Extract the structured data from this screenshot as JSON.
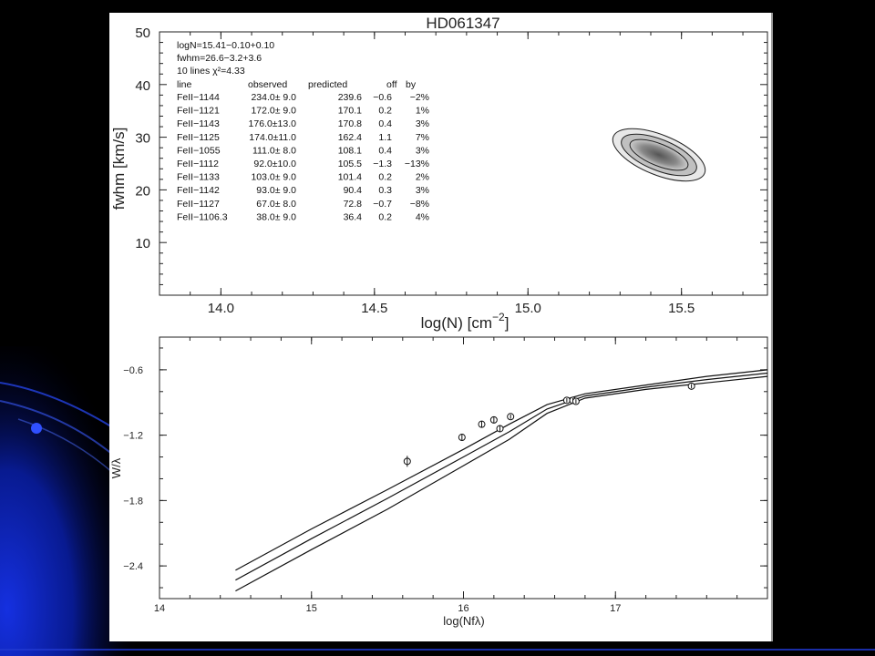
{
  "chart_data": [
    {
      "type": "contour",
      "title": "HD061347",
      "xlabel_main": "log(N)",
      "xlabel_unit": "[cm",
      "xlabel_unit_exp": "−2",
      "xlabel_unit_close": "]",
      "ylabel": "fwhm [km/s]",
      "xlim": [
        13.8,
        15.78
      ],
      "ylim": [
        0,
        50
      ],
      "xticks": [
        14.0,
        14.5,
        15.0,
        15.5
      ],
      "xtick_labels": [
        "14.0",
        "14.5",
        "15.0",
        "15.5"
      ],
      "yticks": [
        10,
        20,
        30,
        40,
        50
      ],
      "ytick_labels": [
        "10",
        "20",
        "30",
        "40",
        "50"
      ],
      "best_fit": {
        "logN": 15.41,
        "fwhm": 26.6
      },
      "info_lines": [
        "logN=15.41−0.10+0.10",
        "fwhm=26.6−3.2+3.6",
        "10 lines χ²=4.33"
      ],
      "table_header": [
        "line",
        "observed",
        "predicted",
        "off",
        "by"
      ],
      "table_rows": [
        [
          "FeII−1144",
          "234.0±  9.0",
          "239.6",
          "−0.6",
          "−2%"
        ],
        [
          "FeII−1121",
          "172.0±  9.0",
          "170.1",
          "0.2",
          "1%"
        ],
        [
          "FeII−1143",
          "176.0±13.0",
          "170.8",
          "0.4",
          "3%"
        ],
        [
          "FeII−1125",
          "174.0±11.0",
          "162.4",
          "1.1",
          "7%"
        ],
        [
          "FeII−1055",
          "111.0±  8.0",
          "108.1",
          "0.4",
          "3%"
        ],
        [
          "FeII−1112",
          "92.0±10.0",
          "105.5",
          "−1.3",
          "−13%"
        ],
        [
          "FeII−1133",
          "103.0±  9.0",
          "101.4",
          "0.2",
          "2%"
        ],
        [
          "FeII−1142",
          "93.0±  9.0",
          "90.4",
          "0.3",
          "3%"
        ],
        [
          "FeII−1127",
          "67.0±  8.0",
          "72.8",
          "−0.7",
          "−8%"
        ],
        [
          "FeII−1106.3",
          "38.0±  9.0",
          "36.4",
          "0.2",
          "4%"
        ]
      ]
    },
    {
      "type": "line",
      "xlabel": "log(Nfλ)",
      "ylabel": "W/λ",
      "xlim": [
        14,
        18
      ],
      "ylim": [
        -2.7,
        -0.3
      ],
      "xticks": [
        14,
        15,
        16,
        17
      ],
      "xtick_labels": [
        "14",
        "15",
        "16",
        "17"
      ],
      "yticks": [
        -0.6,
        -1.2,
        -1.8,
        -2.4
      ],
      "ytick_labels": [
        "−0.6",
        "−1.2",
        "−1.8",
        "−2.4"
      ],
      "series": [
        {
          "x": [
            14.5,
            15.0,
            15.5,
            16.0,
            16.3,
            16.55,
            16.8,
            17.2,
            17.6,
            18.0
          ],
          "y": [
            -2.44,
            -2.06,
            -1.7,
            -1.33,
            -1.1,
            -0.92,
            -0.82,
            -0.74,
            -0.66,
            -0.6
          ]
        },
        {
          "x": [
            14.5,
            15.0,
            15.5,
            16.0,
            16.3,
            16.55,
            16.8,
            17.2,
            17.6,
            18.0
          ],
          "y": [
            -2.53,
            -2.15,
            -1.78,
            -1.4,
            -1.17,
            -0.96,
            -0.84,
            -0.76,
            -0.69,
            -0.63
          ]
        },
        {
          "x": [
            14.5,
            15.0,
            15.5,
            16.0,
            16.3,
            16.55,
            16.8,
            17.2,
            17.6,
            18.0
          ],
          "y": [
            -2.63,
            -2.25,
            -1.88,
            -1.48,
            -1.24,
            -1.0,
            -0.86,
            -0.78,
            -0.72,
            -0.66
          ]
        }
      ],
      "points": [
        {
          "x": 15.63,
          "y": -1.44,
          "err": 0.05
        },
        {
          "x": 15.99,
          "y": -1.22,
          "err": 0.03
        },
        {
          "x": 16.12,
          "y": -1.1,
          "err": 0.03
        },
        {
          "x": 16.2,
          "y": -1.06,
          "err": 0.03
        },
        {
          "x": 16.24,
          "y": -1.14,
          "err": 0.03
        },
        {
          "x": 16.31,
          "y": -1.03,
          "err": 0.02
        },
        {
          "x": 16.68,
          "y": -0.88,
          "err": 0.02
        },
        {
          "x": 16.72,
          "y": -0.88,
          "err": 0.02
        },
        {
          "x": 16.74,
          "y": -0.89,
          "err": 0.02
        },
        {
          "x": 17.5,
          "y": -0.75,
          "err": 0.02
        }
      ]
    }
  ]
}
